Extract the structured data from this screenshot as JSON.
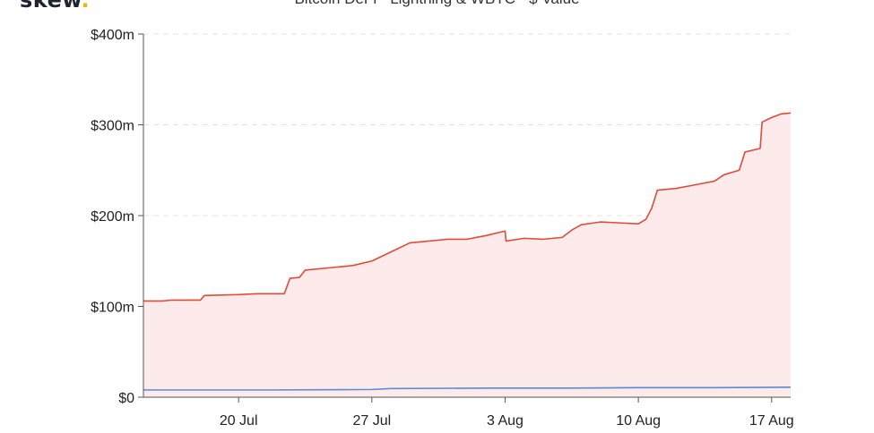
{
  "logo": {
    "text": "skew",
    "dot": "."
  },
  "colors": {
    "line_red": "#e04b3a",
    "fill_red": "#fdeaea",
    "line_blue": "#5b8ad6",
    "grid": "#e3e3e3",
    "axis": "#555555"
  },
  "chart_data": {
    "type": "area",
    "title": "Bitcoin DeFi - Lightning & WBTC - $ Value",
    "xlabel": "",
    "ylabel": "",
    "xlim": [
      "2020-07-15",
      "2020-08-18"
    ],
    "ylim": [
      0,
      400
    ],
    "grid": true,
    "x_tick_labels": [
      "20 Jul",
      "27 Jul",
      "3 Aug",
      "10 Aug",
      "17 Aug"
    ],
    "x_tick_dates": [
      "2020-07-20",
      "2020-07-27",
      "2020-08-03",
      "2020-08-10",
      "2020-08-17"
    ],
    "y_tick_labels": [
      "$0",
      "$100m",
      "$200m",
      "$300m",
      "$400m"
    ],
    "y_tick_values": [
      0,
      100,
      200,
      300,
      400
    ],
    "series": [
      {
        "color": "#e04b3a",
        "points": [
          [
            "2020-07-15",
            106
          ],
          [
            "2020-07-16",
            106
          ],
          [
            "2020-07-16.5",
            107
          ],
          [
            "2020-07-18",
            107
          ],
          [
            "2020-07-18.2",
            112
          ],
          [
            "2020-07-20",
            113
          ],
          [
            "2020-07-21",
            114
          ],
          [
            "2020-07-22.4",
            114
          ],
          [
            "2020-07-22.7",
            131
          ],
          [
            "2020-07-23.2",
            132
          ],
          [
            "2020-07-23.5",
            140
          ],
          [
            "2020-07-25",
            143
          ],
          [
            "2020-07-26",
            145
          ],
          [
            "2020-07-27",
            150
          ],
          [
            "2020-07-28",
            160
          ],
          [
            "2020-07-29",
            170
          ],
          [
            "2020-07-30",
            172
          ],
          [
            "2020-07-31",
            174
          ],
          [
            "2020-08-01",
            174
          ],
          [
            "2020-08-02",
            178
          ],
          [
            "2020-08-03",
            183
          ],
          [
            "2020-08-03.05",
            172
          ],
          [
            "2020-08-04",
            175
          ],
          [
            "2020-08-05",
            174
          ],
          [
            "2020-08-06",
            176
          ],
          [
            "2020-08-06.5",
            184
          ],
          [
            "2020-08-07",
            190
          ],
          [
            "2020-08-08",
            193
          ],
          [
            "2020-08-09",
            192
          ],
          [
            "2020-08-10",
            191
          ],
          [
            "2020-08-10.4",
            196
          ],
          [
            "2020-08-10.7",
            208
          ],
          [
            "2020-08-11",
            228
          ],
          [
            "2020-08-12",
            230
          ],
          [
            "2020-08-13",
            234
          ],
          [
            "2020-08-14",
            238
          ],
          [
            "2020-08-14.5",
            245
          ],
          [
            "2020-08-15.3",
            250
          ],
          [
            "2020-08-15.6",
            270
          ],
          [
            "2020-08-16.4",
            274
          ],
          [
            "2020-08-16.5",
            303
          ],
          [
            "2020-08-17",
            308
          ],
          [
            "2020-08-17.5",
            312
          ],
          [
            "2020-08-18",
            313
          ]
        ]
      },
      {
        "color": "#5b8ad6",
        "points": [
          [
            "2020-07-15",
            8
          ],
          [
            "2020-07-22",
            8
          ],
          [
            "2020-07-27",
            8.5
          ],
          [
            "2020-07-28",
            9.5
          ],
          [
            "2020-08-02",
            10
          ],
          [
            "2020-08-06",
            10
          ],
          [
            "2020-08-10",
            10.5
          ],
          [
            "2020-08-14",
            10.5
          ],
          [
            "2020-08-18",
            11
          ]
        ]
      }
    ]
  }
}
